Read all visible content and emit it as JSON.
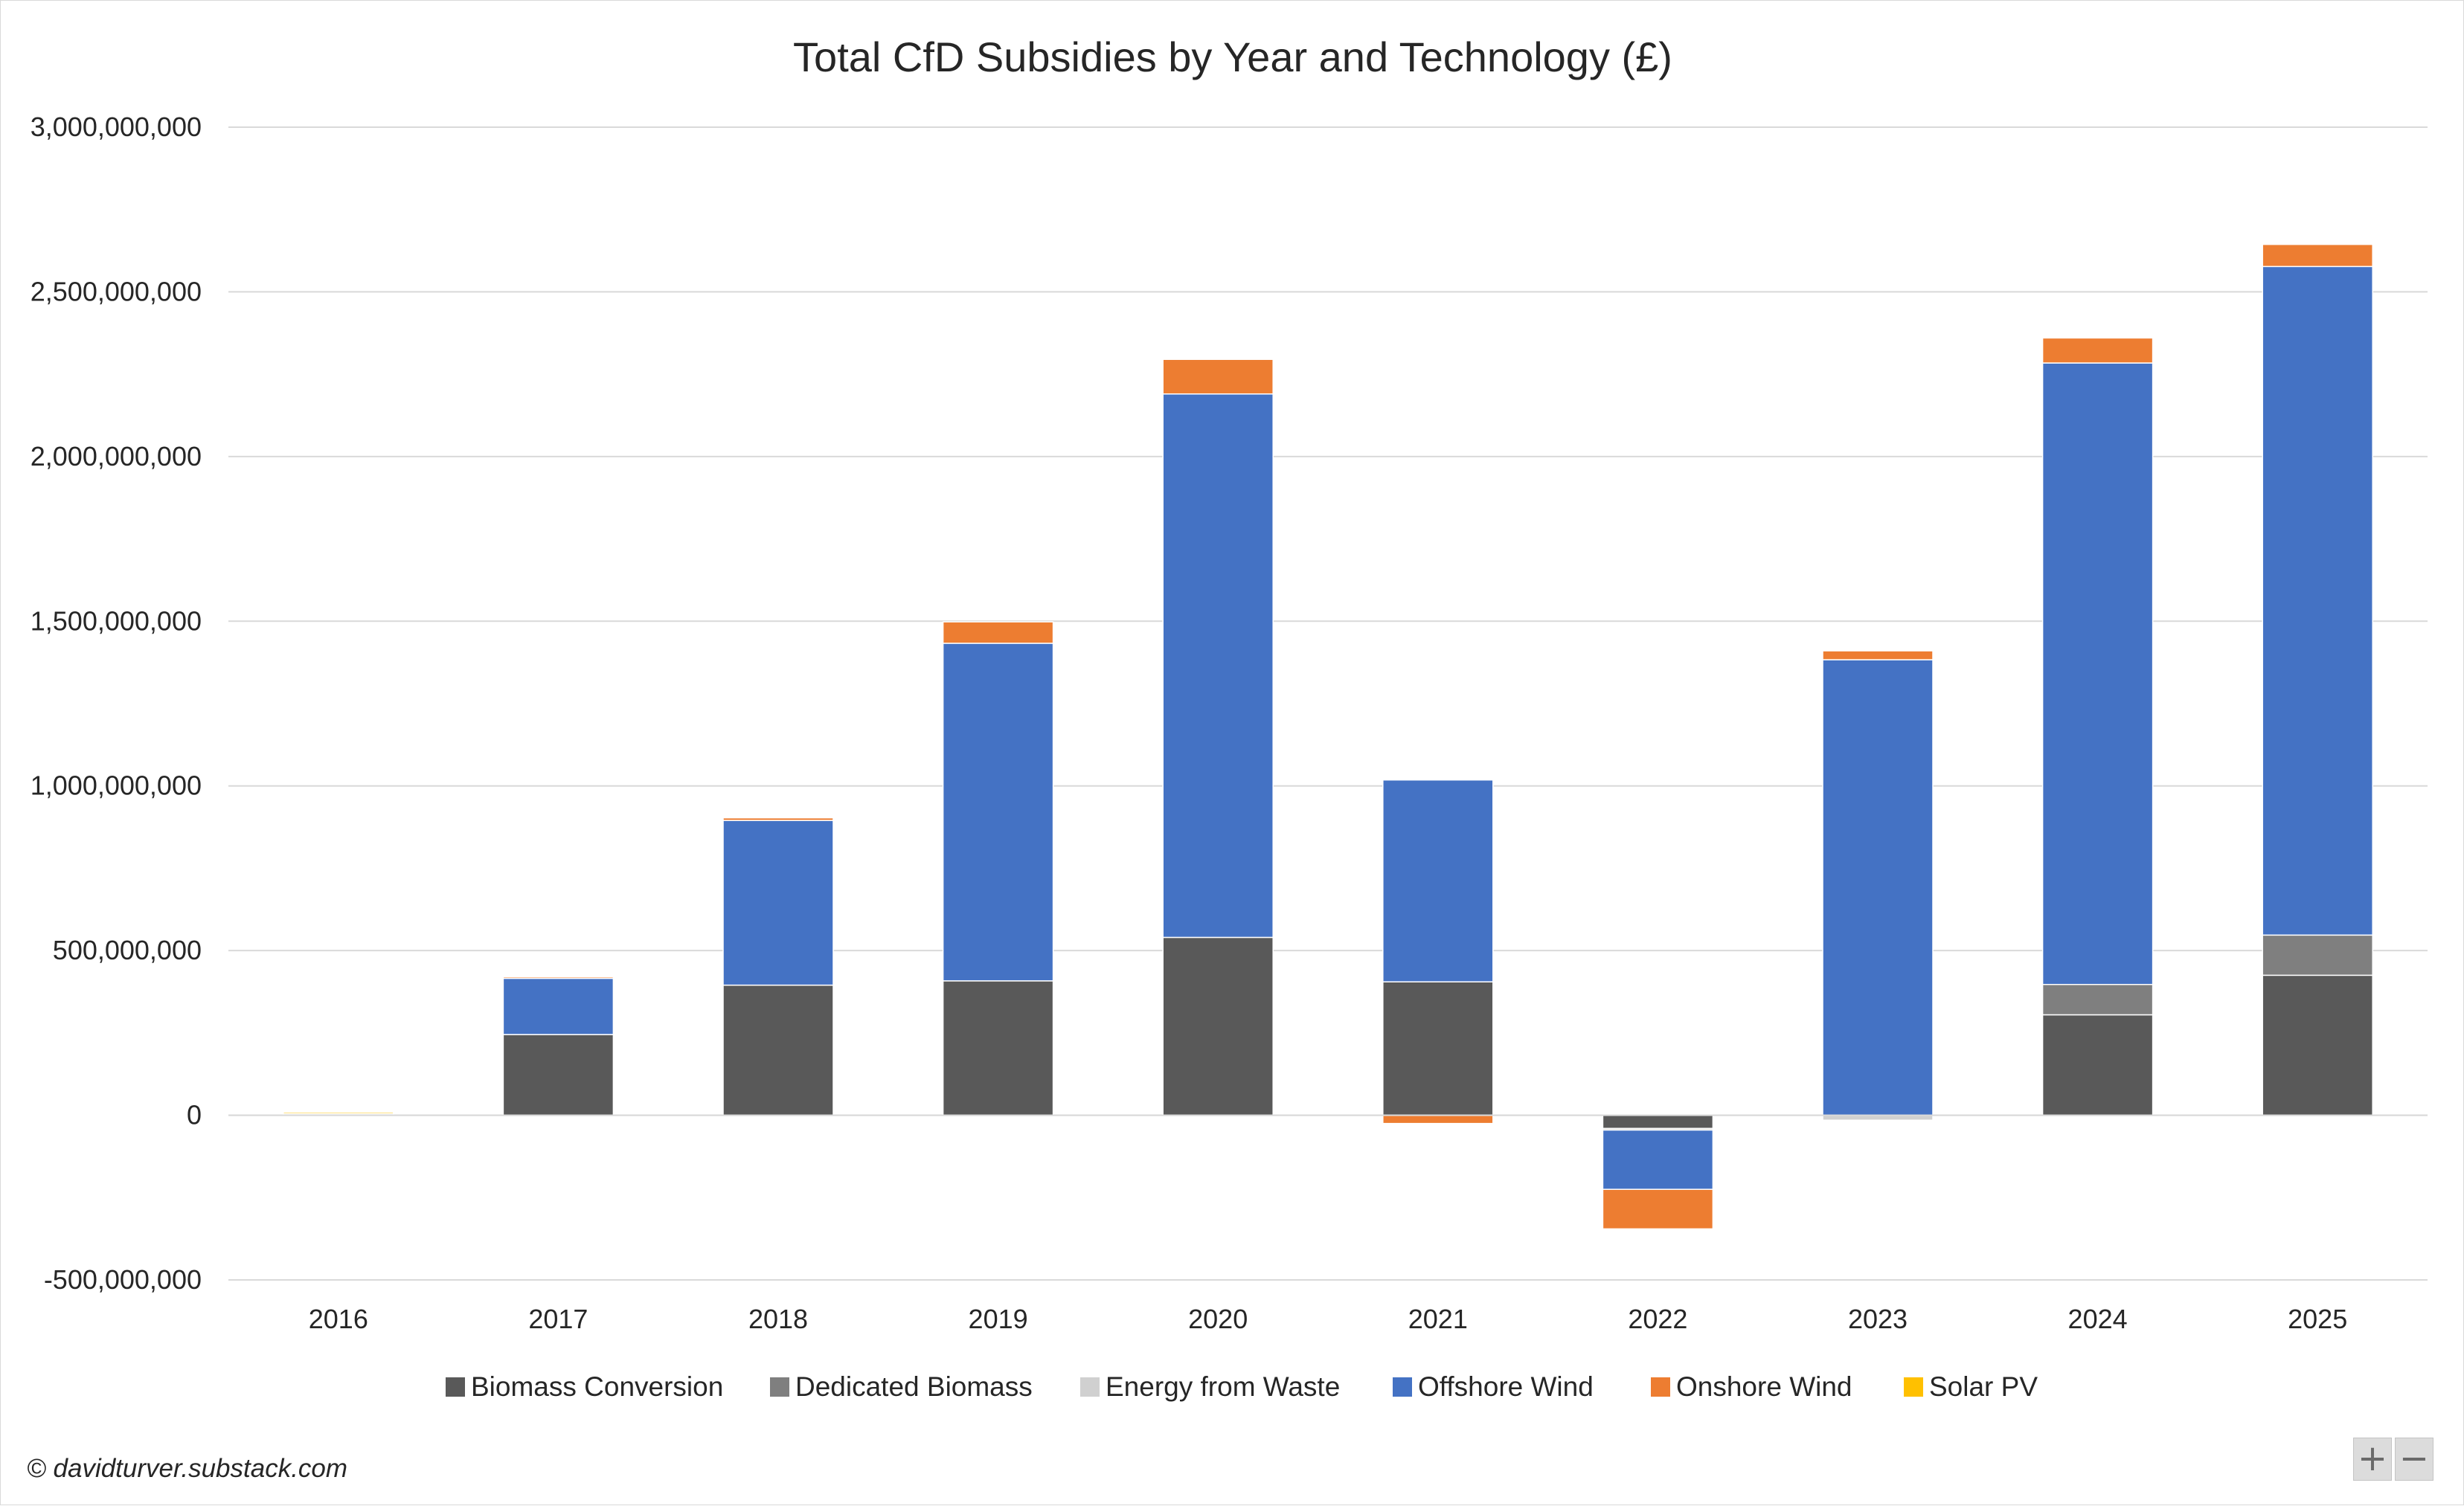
{
  "chart_data": {
    "type": "bar",
    "stacked": true,
    "title": "Total CfD Subsidies by Year and Technology (£)",
    "xlabel": "",
    "ylabel": "",
    "categories": [
      "2016",
      "2017",
      "2018",
      "2019",
      "2020",
      "2021",
      "2022",
      "2023",
      "2024",
      "2025"
    ],
    "ylim": [
      -500000000,
      3000000000
    ],
    "yticks": [
      -500000000,
      0,
      500000000,
      1000000000,
      1500000000,
      2000000000,
      2500000000,
      3000000000
    ],
    "ytick_labels": [
      "-500,000,000",
      "0",
      "500,000,000",
      "1,000,000,000",
      "1,500,000,000",
      "2,000,000,000",
      "2,500,000,000",
      "3,000,000,000"
    ],
    "grid": true,
    "legend_position": "bottom",
    "series": [
      {
        "name": "Biomass Conversion",
        "color": "#595959",
        "values": [
          5000000,
          245000000,
          395000000,
          408000000,
          540000000,
          405000000,
          -40000000,
          0,
          305000000,
          425000000
        ]
      },
      {
        "name": "Dedicated Biomass",
        "color": "#7f7f7f",
        "values": [
          0,
          0,
          0,
          0,
          0,
          0,
          0,
          0,
          92000000,
          122000000
        ]
      },
      {
        "name": "Energy from Waste",
        "color": "#d0d0d0",
        "values": [
          0,
          0,
          0,
          0,
          0,
          0,
          -5000000,
          -15000000,
          0,
          0
        ]
      },
      {
        "name": "Offshore Wind",
        "color": "#4472c4",
        "values": [
          0,
          172000000,
          500000000,
          1025000000,
          1650000000,
          613000000,
          -180000000,
          1383000000,
          1887000000,
          2030000000
        ]
      },
      {
        "name": "Onshore Wind",
        "color": "#ed7d31",
        "values": [
          3000000,
          3000000,
          8000000,
          65000000,
          105000000,
          -25000000,
          -120000000,
          27000000,
          76000000,
          67000000
        ]
      },
      {
        "name": "Solar PV",
        "color": "#ffc000",
        "values": [
          1000000,
          0,
          0,
          0,
          0,
          0,
          0,
          0,
          0,
          0
        ]
      }
    ]
  },
  "credit": "© davidturver.substack.com",
  "zoom": {
    "in_label": "+",
    "out_label": "−"
  }
}
